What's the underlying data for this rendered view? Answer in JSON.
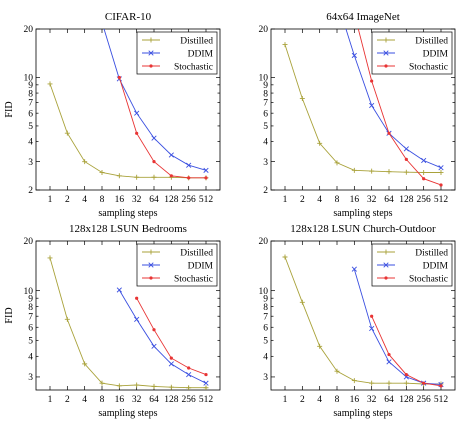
{
  "chart_data": [
    {
      "type": "line",
      "title": "CIFAR-10",
      "xlabel": "sampling steps",
      "ylabel": "FID",
      "y_scale": "log",
      "ylim": [
        2,
        20
      ],
      "yticks": [
        2,
        3,
        4,
        5,
        6,
        7,
        8,
        9,
        10,
        20
      ],
      "x": [
        1,
        2,
        4,
        8,
        16,
        32,
        64,
        128,
        256,
        512
      ],
      "legend_position": "top-right",
      "series": [
        {
          "name": "Distilled",
          "color": "#a9a23a",
          "marker": "plus",
          "values": [
            9.12,
            4.51,
            3.0,
            2.57,
            2.45,
            2.4,
            2.4,
            2.4,
            2.38,
            2.38
          ]
        },
        {
          "name": "DDIM",
          "color": "#3a4fe0",
          "marker": "cross",
          "values": [
            null,
            null,
            null,
            22.0,
            9.8,
            6.0,
            4.2,
            3.3,
            2.85,
            2.65
          ]
        },
        {
          "name": "Stochastic",
          "color": "#e83434",
          "marker": "dot",
          "values": [
            null,
            null,
            null,
            null,
            10.0,
            4.5,
            3.0,
            2.45,
            2.38,
            2.38
          ]
        }
      ]
    },
    {
      "type": "line",
      "title": "64x64 ImageNet",
      "xlabel": "sampling steps",
      "ylabel": "",
      "y_scale": "log",
      "ylim": [
        2,
        20
      ],
      "yticks": [
        2,
        3,
        4,
        5,
        6,
        7,
        8,
        9,
        10,
        20
      ],
      "x": [
        1,
        2,
        4,
        8,
        16,
        32,
        64,
        128,
        256,
        512
      ],
      "legend_position": "top-right",
      "series": [
        {
          "name": "Distilled",
          "color": "#a9a23a",
          "marker": "plus",
          "values": [
            16.0,
            7.4,
            3.9,
            2.95,
            2.65,
            2.62,
            2.6,
            2.58,
            2.57,
            2.57
          ]
        },
        {
          "name": "DDIM",
          "color": "#3a4fe0",
          "marker": "cross",
          "values": [
            null,
            null,
            null,
            30.0,
            13.7,
            6.7,
            4.5,
            3.6,
            3.05,
            2.75
          ]
        },
        {
          "name": "Stochastic",
          "color": "#e83434",
          "marker": "dot",
          "values": [
            null,
            null,
            null,
            null,
            25.0,
            9.5,
            4.5,
            3.1,
            2.35,
            2.15
          ]
        }
      ]
    },
    {
      "type": "line",
      "title": "128x128 LSUN Bedrooms",
      "xlabel": "sampling steps",
      "ylabel": "FID",
      "y_scale": "log",
      "ylim": [
        2.5,
        20
      ],
      "yticks": [
        3,
        4,
        5,
        6,
        7,
        8,
        9,
        10,
        20
      ],
      "x": [
        1,
        2,
        4,
        8,
        16,
        32,
        64,
        128,
        256,
        512
      ],
      "legend_position": "top-right",
      "series": [
        {
          "name": "Distilled",
          "color": "#a9a23a",
          "marker": "plus",
          "values": [
            15.8,
            6.7,
            3.6,
            2.75,
            2.65,
            2.68,
            2.63,
            2.6,
            2.58,
            2.58
          ]
        },
        {
          "name": "DDIM",
          "color": "#3a4fe0",
          "marker": "cross",
          "values": [
            null,
            null,
            null,
            null,
            10.1,
            6.7,
            4.6,
            3.6,
            3.1,
            2.75
          ]
        },
        {
          "name": "Stochastic",
          "color": "#e83434",
          "marker": "dot",
          "values": [
            null,
            null,
            null,
            null,
            null,
            9.0,
            5.8,
            3.9,
            3.4,
            3.1
          ]
        }
      ]
    },
    {
      "type": "line",
      "title": "128x128 LSUN Church-Outdoor",
      "xlabel": "sampling steps",
      "ylabel": "",
      "y_scale": "log",
      "ylim": [
        2.5,
        20
      ],
      "yticks": [
        3,
        4,
        5,
        6,
        7,
        8,
        9,
        10,
        20
      ],
      "x": [
        1,
        2,
        4,
        8,
        16,
        32,
        64,
        128,
        256,
        512
      ],
      "legend_position": "top-right",
      "series": [
        {
          "name": "Distilled",
          "color": "#a9a23a",
          "marker": "plus",
          "values": [
            16.0,
            8.5,
            4.6,
            3.25,
            2.85,
            2.75,
            2.75,
            2.75,
            2.72,
            2.72
          ]
        },
        {
          "name": "DDIM",
          "color": "#3a4fe0",
          "marker": "cross",
          "values": [
            null,
            null,
            null,
            null,
            13.5,
            5.9,
            3.7,
            3.0,
            2.75,
            2.7
          ]
        },
        {
          "name": "Stochastic",
          "color": "#e83434",
          "marker": "dot",
          "values": [
            null,
            null,
            null,
            null,
            null,
            7.0,
            4.1,
            3.1,
            2.75,
            2.65
          ]
        }
      ]
    }
  ]
}
